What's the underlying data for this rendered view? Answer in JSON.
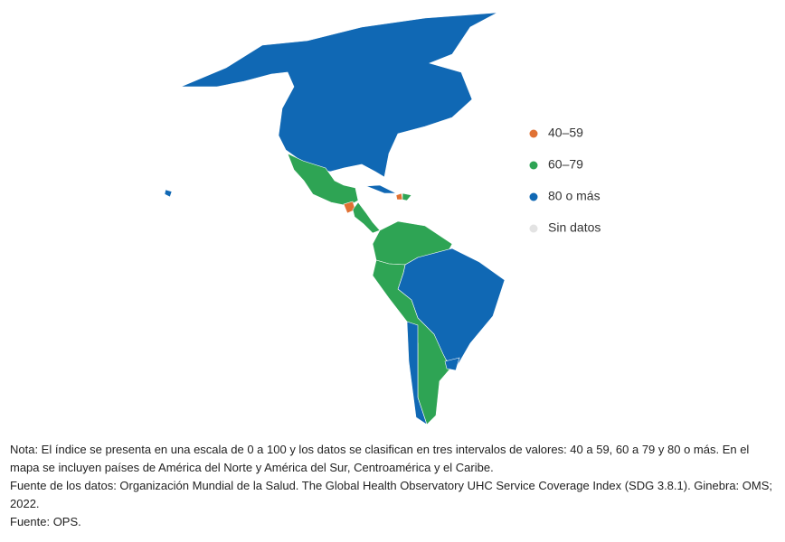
{
  "legend": [
    {
      "label": "40–59",
      "color": "#e07133"
    },
    {
      "label": "60–79",
      "color": "#2ea454"
    },
    {
      "label": "80 o más",
      "color": "#1068b4"
    },
    {
      "label": "Sin datos",
      "color": "#e3e3e3"
    }
  ],
  "notes": [
    "Nota: El índice se presenta en una escala de 0 a 100 y los datos se clasifican en tres intervalos de valores: 40 a 59, 60 a 79 y 80 o más. En el mapa se incluyen países de América del Norte y América del Sur, Centroamérica y el Caribe.",
    "Fuente de los datos: Organización Mundial de la Salud. The Global Health Observatory UHC Service Coverage Index (SDG 3.8.1). Ginebra: OMS; 2022.",
    "Fuente: OPS."
  ]
}
